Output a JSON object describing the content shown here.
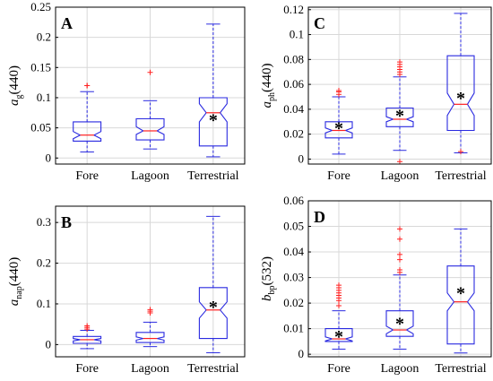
{
  "chart_data": [
    {
      "type": "boxplot",
      "panel_label": "A",
      "ylabel": {
        "main": "a",
        "sub": "g",
        "tail": "(440)"
      },
      "categories": [
        "Fore",
        "Lagoon",
        "Terrestrial"
      ],
      "ylim": [
        -0.01,
        0.25
      ],
      "yticks": [
        0,
        0.05,
        0.1,
        0.15,
        0.2,
        0.25
      ],
      "grid": true,
      "boxes": [
        {
          "whisker_low": 0.01,
          "q1": 0.028,
          "median": 0.038,
          "q3": 0.06,
          "whisker_high": 0.11,
          "notch_low": 0.032,
          "notch_high": 0.044,
          "outliers": [
            0.12,
            0.12
          ],
          "mean": null
        },
        {
          "whisker_low": 0.015,
          "q1": 0.03,
          "median": 0.045,
          "q3": 0.065,
          "whisker_high": 0.095,
          "notch_low": 0.039,
          "notch_high": 0.052,
          "outliers": [
            0.142
          ],
          "mean": null
        },
        {
          "whisker_low": 0.002,
          "q1": 0.02,
          "median": 0.075,
          "q3": 0.1,
          "whisker_high": 0.222,
          "notch_low": 0.06,
          "notch_high": 0.09,
          "outliers": [],
          "mean": 0.065
        }
      ]
    },
    {
      "type": "boxplot",
      "panel_label": "C",
      "ylabel": {
        "main": "a",
        "sub": "ph",
        "tail": "(440)"
      },
      "categories": [
        "Fore",
        "Lagoon",
        "Terrestrial"
      ],
      "ylim": [
        -0.004,
        0.122
      ],
      "yticks": [
        0,
        0.02,
        0.04,
        0.06,
        0.08,
        0.1,
        0.12
      ],
      "grid": true,
      "boxes": [
        {
          "whisker_low": 0.004,
          "q1": 0.017,
          "median": 0.023,
          "q3": 0.03,
          "whisker_high": 0.05,
          "notch_low": 0.021,
          "notch_high": 0.025,
          "outliers": [
            0.052,
            0.054,
            0.055
          ],
          "mean": 0.026
        },
        {
          "whisker_low": 0.007,
          "q1": 0.026,
          "median": 0.032,
          "q3": 0.041,
          "whisker_high": 0.066,
          "notch_low": 0.03,
          "notch_high": 0.034,
          "outliers": [
            0.068,
            0.07,
            0.072,
            0.074,
            0.076,
            0.078,
            -0.002
          ],
          "mean": 0.036
        },
        {
          "whisker_low": 0.005,
          "q1": 0.023,
          "median": 0.044,
          "q3": 0.083,
          "whisker_high": 0.117,
          "notch_low": 0.035,
          "notch_high": 0.053,
          "outliers": [
            0.006
          ],
          "mean": 0.05
        }
      ]
    },
    {
      "type": "boxplot",
      "panel_label": "B",
      "ylabel": {
        "main": "a",
        "sub": "nap",
        "tail": "(440)"
      },
      "categories": [
        "Fore",
        "Lagoon",
        "Terrestrial"
      ],
      "ylim": [
        -0.03,
        0.34
      ],
      "yticks": [
        0,
        0.1,
        0.2,
        0.3
      ],
      "grid": true,
      "boxes": [
        {
          "whisker_low": -0.01,
          "q1": 0.003,
          "median": 0.012,
          "q3": 0.02,
          "whisker_high": 0.035,
          "notch_low": 0.009,
          "notch_high": 0.015,
          "outliers": [
            0.038,
            0.042,
            0.046
          ],
          "mean": null
        },
        {
          "whisker_low": -0.005,
          "q1": 0.005,
          "median": 0.015,
          "q3": 0.03,
          "whisker_high": 0.055,
          "notch_low": 0.011,
          "notch_high": 0.019,
          "outliers": [
            0.078,
            0.082,
            0.086
          ],
          "mean": null
        },
        {
          "whisker_low": -0.02,
          "q1": 0.015,
          "median": 0.085,
          "q3": 0.14,
          "whisker_high": 0.315,
          "notch_low": 0.065,
          "notch_high": 0.105,
          "outliers": [],
          "mean": 0.095
        }
      ]
    },
    {
      "type": "boxplot",
      "panel_label": "D",
      "ylabel": {
        "main": "b",
        "sub": "bp",
        "tail": "(532)"
      },
      "categories": [
        "Fore",
        "Lagoon",
        "Terrestrial"
      ],
      "ylim": [
        -0.001,
        0.06
      ],
      "yticks": [
        0,
        0.01,
        0.02,
        0.03,
        0.04,
        0.05,
        0.06
      ],
      "grid": true,
      "boxes": [
        {
          "whisker_low": 0.002,
          "q1": 0.005,
          "median": 0.006,
          "q3": 0.01,
          "whisker_high": 0.017,
          "notch_low": 0.0052,
          "notch_high": 0.0068,
          "outliers": [
            0.019,
            0.021,
            0.022,
            0.023,
            0.024,
            0.025,
            0.026,
            0.027
          ],
          "mean": 0.0075
        },
        {
          "whisker_low": 0.002,
          "q1": 0.007,
          "median": 0.0095,
          "q3": 0.017,
          "whisker_high": 0.031,
          "notch_low": 0.008,
          "notch_high": 0.011,
          "outliers": [
            0.032,
            0.033,
            0.037,
            0.039,
            0.045,
            0.049
          ],
          "mean": 0.0125
        },
        {
          "whisker_low": 0.0005,
          "q1": 0.004,
          "median": 0.0205,
          "q3": 0.0345,
          "whisker_high": 0.049,
          "notch_low": 0.017,
          "notch_high": 0.024,
          "outliers": [],
          "mean": 0.0245
        }
      ]
    }
  ]
}
